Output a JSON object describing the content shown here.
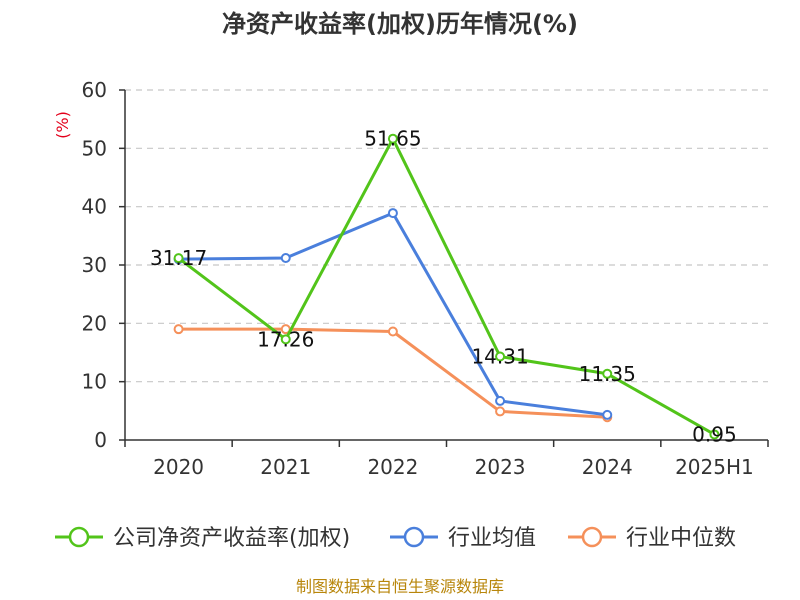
{
  "chart_data": {
    "type": "line",
    "title": "净资产收益率(加权)历年情况(%)",
    "y_unit": "(%)",
    "categories": [
      "2020",
      "2021",
      "2022",
      "2023",
      "2024",
      "2025H1"
    ],
    "ylim": [
      0,
      60
    ],
    "yticks": [
      0,
      10,
      20,
      30,
      40,
      50,
      60
    ],
    "grid": true,
    "legend_position": "bottom",
    "series": [
      {
        "name": "公司净资产收益率(加权)",
        "color": "#52c41a",
        "values": [
          31.17,
          17.26,
          51.65,
          14.31,
          11.35,
          0.95
        ],
        "labels_shown": true
      },
      {
        "name": "行业均值",
        "color": "#4a7fdc",
        "values": [
          31.0,
          31.2,
          38.9,
          6.7,
          4.3,
          null
        ],
        "labels_shown": false
      },
      {
        "name": "行业中位数",
        "color": "#f5905a",
        "values": [
          19.0,
          19.0,
          18.6,
          4.9,
          3.9,
          null
        ],
        "labels_shown": false
      }
    ]
  },
  "footer": {
    "source": "制图数据来自恒生聚源数据库"
  }
}
